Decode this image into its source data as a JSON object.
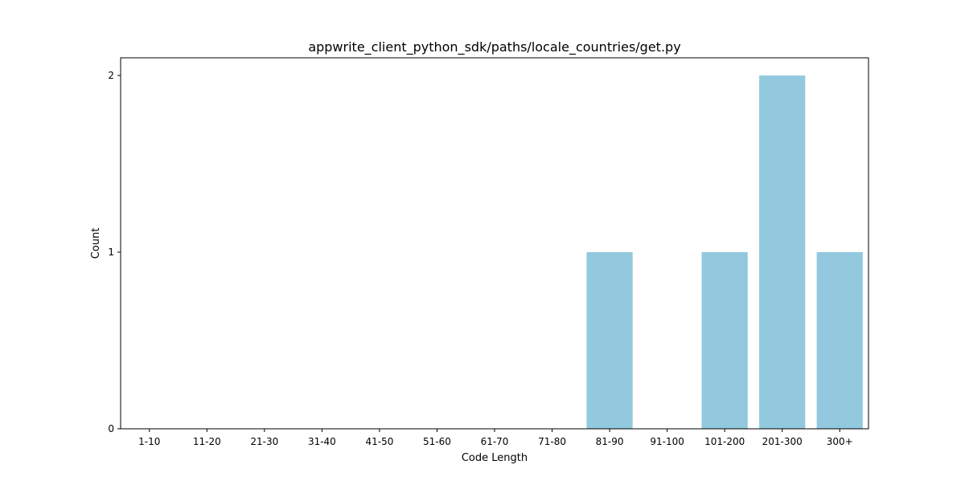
{
  "chart_data": {
    "type": "bar",
    "title": "appwrite_client_python_sdk/paths/locale_countries/get.py",
    "xlabel": "Code Length",
    "ylabel": "Count",
    "categories": [
      "1-10",
      "11-20",
      "21-30",
      "31-40",
      "41-50",
      "51-60",
      "61-70",
      "71-80",
      "81-90",
      "91-100",
      "101-200",
      "201-300",
      "300+"
    ],
    "values": [
      0,
      0,
      0,
      0,
      0,
      0,
      0,
      0,
      1,
      0,
      1,
      2,
      1
    ],
    "yticks": [
      "0",
      "1",
      "2"
    ],
    "ylim": [
      0,
      2.1
    ],
    "grid": false,
    "legend": "none",
    "bar_color": "#92c9de"
  }
}
